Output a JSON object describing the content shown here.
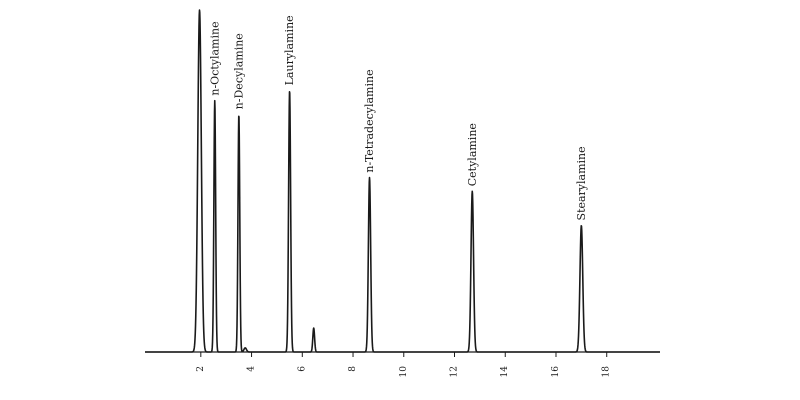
{
  "chart_data": {
    "type": "line",
    "title": "",
    "xlabel": "",
    "ylabel": "",
    "xlim": [
      -0.2,
      20.1
    ],
    "ylim": [
      0,
      100
    ],
    "xticks": [
      2,
      4,
      6,
      8,
      10,
      12,
      14,
      16,
      18
    ],
    "xtick_labels": [
      "2",
      "4",
      "6",
      "8",
      "10",
      "12",
      "14",
      "16",
      "18"
    ],
    "grid": false,
    "legend": "none",
    "peaks": [
      {
        "label": "",
        "x": 1.95,
        "height": 100,
        "width": 0.07
      },
      {
        "label": "n-Octylamine",
        "x": 2.55,
        "height": 73.5,
        "width": 0.035
      },
      {
        "label": "n-Decylamine",
        "x": 3.5,
        "height": 69.5,
        "width": 0.035
      },
      {
        "label": "",
        "x": 3.75,
        "height": 1.2,
        "width": 0.05
      },
      {
        "label": "Laurylamine",
        "x": 5.5,
        "height": 76.5,
        "width": 0.04
      },
      {
        "label": "",
        "x": 6.45,
        "height": 7,
        "width": 0.035
      },
      {
        "label": "n-Tetradecylamine",
        "x": 8.65,
        "height": 51,
        "width": 0.045
      },
      {
        "label": "Cetylamine",
        "x": 12.7,
        "height": 47,
        "width": 0.05
      },
      {
        "label": "Stearylamine",
        "x": 17.0,
        "height": 37,
        "width": 0.055
      }
    ]
  }
}
